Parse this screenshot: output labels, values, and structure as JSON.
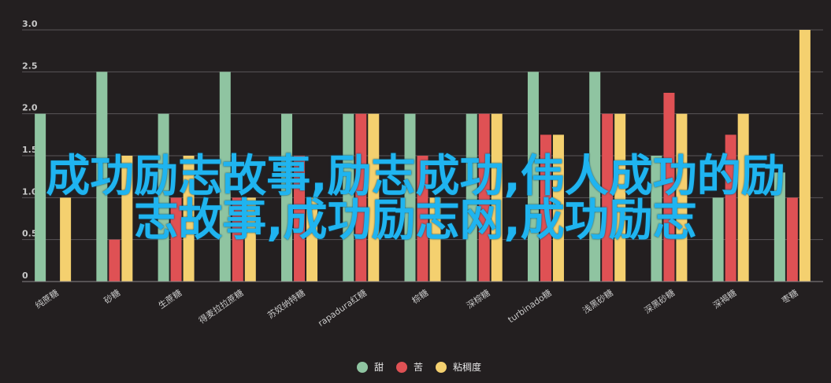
{
  "chart_data": {
    "type": "bar",
    "title": "",
    "xlabel": "",
    "ylabel": "",
    "ylim": [
      0,
      3.0
    ],
    "yticks": [
      "0",
      "0.5",
      "1.0",
      "1.5",
      "2.0",
      "2.5",
      "3.0"
    ],
    "grid": true,
    "legend_position": "bottom-center",
    "categories": [
      "纯蔗糖",
      "砂糖",
      "生蔗糖",
      "得麦拉拉蔗糖",
      "苏奴纳特糖",
      "rapadura红糖",
      "棕糖",
      "深棕糖",
      "turbinado糖",
      "浅黑砂糖",
      "深黑砂糖",
      "深褐糖",
      "枣糖"
    ],
    "series": [
      {
        "name": "甜",
        "color": "#8fc4a1",
        "values": [
          2.0,
          2.5,
          2.0,
          2.5,
          2.0,
          2.0,
          2.0,
          2.0,
          2.5,
          2.5,
          1.5,
          1.0,
          1.3
        ]
      },
      {
        "name": "苦",
        "color": "#df5154",
        "values": [
          0,
          0.5,
          1.0,
          1.0,
          1.5,
          2.0,
          1.5,
          2.0,
          1.75,
          2.0,
          2.25,
          1.75,
          1.0
        ]
      },
      {
        "name": "粘稠度",
        "color": "#f4d06f",
        "values": [
          1.0,
          1.5,
          1.5,
          1.0,
          1.0,
          2.0,
          1.0,
          2.0,
          1.75,
          2.0,
          2.0,
          2.0,
          3.0
        ]
      }
    ]
  },
  "overlay": {
    "line1": "成功励志故事,励志成功,伟人成功的励",
    "line2": "志故事,成功励志网,成功励志"
  }
}
